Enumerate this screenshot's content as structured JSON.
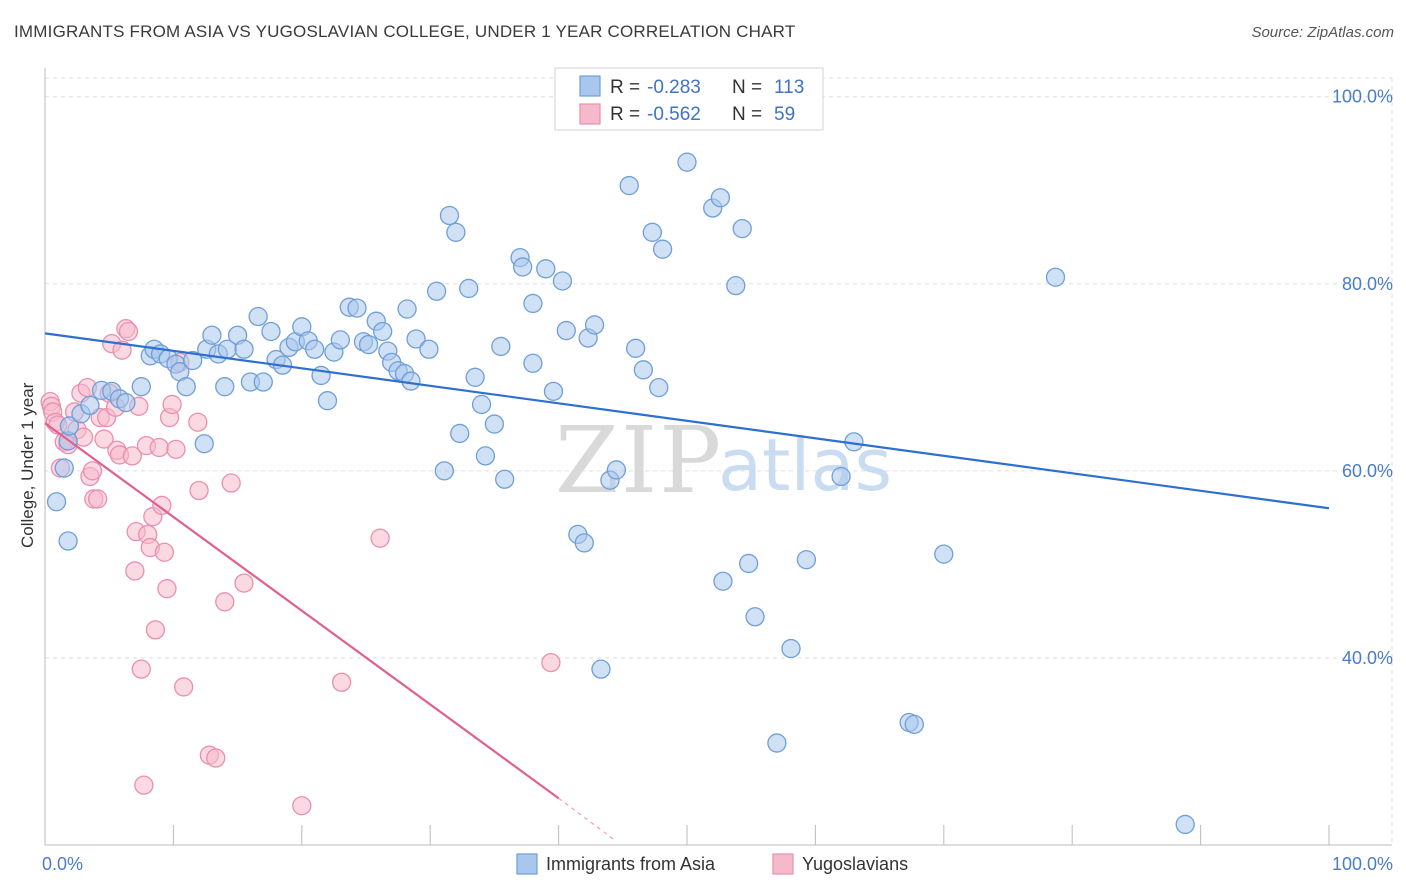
{
  "title": "IMMIGRANTS FROM ASIA VS YUGOSLAVIAN COLLEGE, UNDER 1 YEAR CORRELATION CHART",
  "source": "Source: ZipAtlas.com",
  "watermark": {
    "zip": "ZIP",
    "atlas": "atlas"
  },
  "colors": {
    "blue_fill": "#a9c7ec",
    "blue_stroke": "#6f9fd8",
    "blue_line": "#2f6fcf",
    "pink_fill": "#f6b9cc",
    "pink_stroke": "#ea8fae",
    "pink_line": "#e0608e",
    "grid": "#dddddd",
    "axis_text": "#4a7cc9"
  },
  "legend": {
    "rows": [
      {
        "r_label": "R =",
        "r_value": "-0.283",
        "n_label": "N =",
        "n_value": "113"
      },
      {
        "r_label": "R =",
        "r_value": "-0.562",
        "n_label": "N =",
        "n_value": "59"
      }
    ]
  },
  "bottom_legend": [
    "Immigrants from Asia",
    "Yugoslavians"
  ],
  "chart_data": {
    "type": "scatter",
    "title": "IMMIGRANTS FROM ASIA VS YUGOSLAVIAN COLLEGE, UNDER 1 YEAR CORRELATION CHART",
    "xlabel": "",
    "ylabel": "College, Under 1 year",
    "xlim": [
      0,
      100
    ],
    "ylim": [
      20,
      102
    ],
    "x_tick_labels": [
      "0.0%",
      "100.0%"
    ],
    "y_ticks": [
      40,
      60,
      80,
      100
    ],
    "y_tick_labels": [
      "40.0%",
      "60.0%",
      "80.0%",
      "100.0%"
    ],
    "grid": true,
    "series": [
      {
        "name": "Immigrants from Asia",
        "r": -0.283,
        "n": 113,
        "trend": {
          "x": [
            0,
            100
          ],
          "y": [
            74.7,
            56.0
          ]
        },
        "points": [
          [
            1.8,
            52.5
          ],
          [
            0.9,
            56.7
          ],
          [
            1.5,
            60.3
          ],
          [
            1.8,
            63.2
          ],
          [
            1.9,
            64.8
          ],
          [
            2.8,
            66.1
          ],
          [
            3.5,
            67.0
          ],
          [
            4.4,
            68.6
          ],
          [
            5.2,
            68.5
          ],
          [
            5.8,
            67.7
          ],
          [
            6.3,
            67.3
          ],
          [
            7.5,
            69.0
          ],
          [
            8.2,
            72.3
          ],
          [
            8.5,
            73.0
          ],
          [
            9.0,
            72.5
          ],
          [
            9.6,
            72.0
          ],
          [
            10.2,
            71.4
          ],
          [
            10.5,
            70.6
          ],
          [
            11.0,
            69.0
          ],
          [
            11.5,
            71.8
          ],
          [
            12.4,
            62.9
          ],
          [
            12.6,
            73.0
          ],
          [
            13.0,
            74.5
          ],
          [
            13.5,
            72.5
          ],
          [
            14.0,
            69.0
          ],
          [
            14.2,
            73.0
          ],
          [
            15.0,
            74.5
          ],
          [
            15.5,
            73.0
          ],
          [
            16.0,
            69.5
          ],
          [
            16.6,
            76.5
          ],
          [
            17.0,
            69.5
          ],
          [
            17.6,
            74.9
          ],
          [
            18.0,
            71.9
          ],
          [
            18.5,
            71.3
          ],
          [
            19.0,
            73.2
          ],
          [
            19.5,
            73.8
          ],
          [
            20.0,
            75.4
          ],
          [
            20.5,
            73.9
          ],
          [
            21.0,
            73.0
          ],
          [
            21.5,
            70.2
          ],
          [
            22.0,
            67.5
          ],
          [
            22.5,
            72.7
          ],
          [
            23.0,
            74.0
          ],
          [
            23.7,
            77.5
          ],
          [
            24.3,
            77.4
          ],
          [
            24.8,
            73.8
          ],
          [
            25.2,
            73.5
          ],
          [
            25.8,
            76.0
          ],
          [
            26.3,
            74.9
          ],
          [
            26.7,
            72.8
          ],
          [
            27.0,
            71.6
          ],
          [
            27.5,
            70.7
          ],
          [
            28.0,
            70.4
          ],
          [
            28.5,
            69.6
          ],
          [
            28.2,
            77.3
          ],
          [
            28.9,
            74.1
          ],
          [
            29.9,
            73.0
          ],
          [
            30.5,
            79.2
          ],
          [
            31.5,
            87.3
          ],
          [
            32.0,
            85.5
          ],
          [
            32.3,
            64.0
          ],
          [
            31.1,
            60.0
          ],
          [
            33.0,
            79.5
          ],
          [
            33.5,
            70.0
          ],
          [
            34.0,
            67.1
          ],
          [
            34.3,
            61.6
          ],
          [
            35.0,
            65.0
          ],
          [
            35.5,
            73.3
          ],
          [
            35.8,
            59.1
          ],
          [
            37.0,
            82.8
          ],
          [
            37.2,
            81.8
          ],
          [
            38.0,
            77.9
          ],
          [
            38.0,
            71.5
          ],
          [
            39.0,
            81.6
          ],
          [
            39.6,
            68.5
          ],
          [
            40.3,
            80.3
          ],
          [
            40.6,
            75.0
          ],
          [
            41.5,
            53.2
          ],
          [
            42.0,
            52.3
          ],
          [
            42.3,
            74.2
          ],
          [
            42.8,
            75.6
          ],
          [
            43.3,
            38.8
          ],
          [
            44.0,
            59.0
          ],
          [
            44.5,
            60.1
          ],
          [
            45.5,
            90.5
          ],
          [
            46.0,
            73.1
          ],
          [
            46.6,
            70.8
          ],
          [
            47.3,
            85.5
          ],
          [
            47.8,
            68.9
          ],
          [
            48.1,
            83.7
          ],
          [
            50.0,
            93.0
          ],
          [
            52.0,
            88.1
          ],
          [
            52.8,
            48.2
          ],
          [
            52.6,
            89.2
          ],
          [
            53.8,
            79.8
          ],
          [
            54.3,
            85.9
          ],
          [
            54.8,
            50.1
          ],
          [
            55.3,
            44.4
          ],
          [
            57.0,
            30.9
          ],
          [
            58.1,
            41.0
          ],
          [
            59.3,
            50.5
          ],
          [
            62.0,
            59.4
          ],
          [
            63.0,
            63.1
          ],
          [
            67.3,
            33.1
          ],
          [
            67.7,
            32.9
          ],
          [
            70.0,
            51.1
          ],
          [
            78.7,
            80.7
          ],
          [
            88.8,
            22.2
          ]
        ]
      },
      {
        "name": "Yugoslavians",
        "r": -0.562,
        "n": 59,
        "trend": {
          "x": [
            0,
            40
          ],
          "y": [
            65.1,
            25.0
          ],
          "dash_to": {
            "x": 44.5,
            "y": 20.4
          }
        },
        "points": [
          [
            0.4,
            67.4
          ],
          [
            0.5,
            66.9
          ],
          [
            0.6,
            66.3
          ],
          [
            0.8,
            65.2
          ],
          [
            1.0,
            64.9
          ],
          [
            1.2,
            60.3
          ],
          [
            1.5,
            63.1
          ],
          [
            1.8,
            62.8
          ],
          [
            2.3,
            66.3
          ],
          [
            2.5,
            64.4
          ],
          [
            2.8,
            68.3
          ],
          [
            3.0,
            63.6
          ],
          [
            3.3,
            68.9
          ],
          [
            3.5,
            59.4
          ],
          [
            3.7,
            60.0
          ],
          [
            3.8,
            57.0
          ],
          [
            4.1,
            57.0
          ],
          [
            4.3,
            65.7
          ],
          [
            4.6,
            63.4
          ],
          [
            4.8,
            65.7
          ],
          [
            5.0,
            68.3
          ],
          [
            5.2,
            73.6
          ],
          [
            5.5,
            66.8
          ],
          [
            5.6,
            62.2
          ],
          [
            5.8,
            61.7
          ],
          [
            6.0,
            72.9
          ],
          [
            6.3,
            75.2
          ],
          [
            6.5,
            74.9
          ],
          [
            6.8,
            61.6
          ],
          [
            7.0,
            49.3
          ],
          [
            7.1,
            53.5
          ],
          [
            7.3,
            66.9
          ],
          [
            7.5,
            38.8
          ],
          [
            7.7,
            26.4
          ],
          [
            7.9,
            62.7
          ],
          [
            8.0,
            53.2
          ],
          [
            8.2,
            51.8
          ],
          [
            8.4,
            55.1
          ],
          [
            8.6,
            43.0
          ],
          [
            8.9,
            62.5
          ],
          [
            9.1,
            56.3
          ],
          [
            9.3,
            51.3
          ],
          [
            9.5,
            47.4
          ],
          [
            9.7,
            65.7
          ],
          [
            9.9,
            67.1
          ],
          [
            10.2,
            62.3
          ],
          [
            10.5,
            71.6
          ],
          [
            10.8,
            36.9
          ],
          [
            11.9,
            65.2
          ],
          [
            12.0,
            57.9
          ],
          [
            12.8,
            29.6
          ],
          [
            13.3,
            29.3
          ],
          [
            14.0,
            46.0
          ],
          [
            14.5,
            58.7
          ],
          [
            15.5,
            48.0
          ],
          [
            20.0,
            24.2
          ],
          [
            23.1,
            37.4
          ],
          [
            26.1,
            52.8
          ],
          [
            39.4,
            39.5
          ]
        ]
      }
    ]
  }
}
